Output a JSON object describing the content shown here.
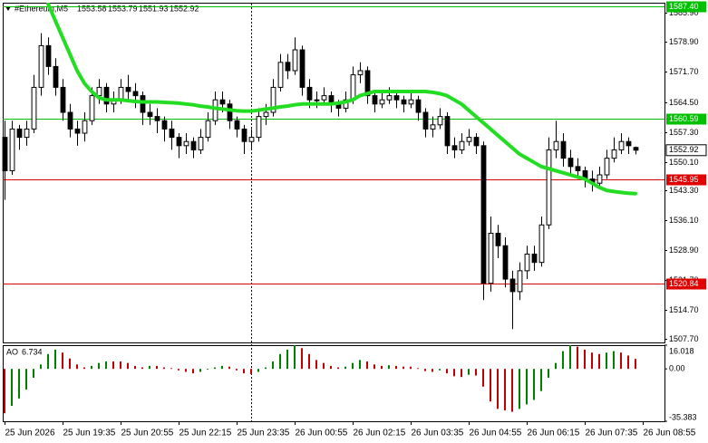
{
  "chart_data": {
    "type": "candlestick",
    "title": "#Ethereum,M5",
    "xlim": [
      -0.25,
      91
    ],
    "xticks": [
      {
        "value": 0,
        "label": "25 Jun 2026"
      },
      {
        "value": 8,
        "label": "25 Jun 19:35"
      },
      {
        "value": 16,
        "label": "25 Jun 20:55"
      },
      {
        "value": 24,
        "label": "25 Jun 22:15"
      },
      {
        "value": 32,
        "label": "25 Jun 23:35"
      },
      {
        "value": 40,
        "label": "26 Jun 00:55"
      },
      {
        "value": 48,
        "label": "26 Jun 02:15"
      },
      {
        "value": 56,
        "label": "26 Jun 03:35"
      },
      {
        "value": 64,
        "label": "26 Jun 04:55"
      },
      {
        "value": 72,
        "label": "26 Jun 06:15"
      },
      {
        "value": 80,
        "label": "26 Jun 07:35"
      },
      {
        "value": 88,
        "label": "26 Jun 08:55"
      }
    ],
    "ylim": [
      1506.8,
      1588.3
    ],
    "yticks": [
      {
        "value": 1585.9,
        "label": "1585.90"
      },
      {
        "value": 1578.9,
        "label": "1578.90"
      },
      {
        "value": 1571.7,
        "label": "1571.70"
      },
      {
        "value": 1564.5,
        "label": "1564.50"
      },
      {
        "value": 1557.3,
        "label": "1557.30"
      },
      {
        "value": 1550.1,
        "label": "1550.10"
      },
      {
        "value": 1543.3,
        "label": "1543.30"
      },
      {
        "value": 1536.1,
        "label": "1536.10"
      },
      {
        "value": 1528.9,
        "label": "1528.90"
      },
      {
        "value": 1521.7,
        "label": "1521.70"
      },
      {
        "value": 1514.7,
        "label": "1514.70"
      },
      {
        "value": 1507.7,
        "label": "1507.70"
      }
    ],
    "levels": [
      {
        "value": 1587.4,
        "label": "1587.40",
        "color": "#00c000"
      },
      {
        "value": 1560.59,
        "label": "1560.59",
        "color": "#00c000"
      },
      {
        "value": 1545.95,
        "label": "1545.95",
        "color": "#e00000"
      },
      {
        "value": 1520.84,
        "label": "1520.84",
        "color": "#e00000"
      }
    ],
    "candles": [
      [
        1556,
        1560,
        1541,
        1548
      ],
      [
        1548,
        1560,
        1547,
        1558
      ],
      [
        1558,
        1559,
        1553,
        1556
      ],
      [
        1556,
        1560,
        1554,
        1558
      ],
      [
        1558,
        1571,
        1557,
        1568
      ],
      [
        1568,
        1581,
        1566,
        1578
      ],
      [
        1578,
        1580,
        1571,
        1573
      ],
      [
        1573,
        1575,
        1566,
        1568
      ],
      [
        1568,
        1570,
        1560,
        1562
      ],
      [
        1562,
        1564,
        1556,
        1558
      ],
      [
        1558,
        1560,
        1554,
        1557
      ],
      [
        1557,
        1562,
        1555,
        1560
      ],
      [
        1560,
        1568,
        1559,
        1566
      ],
      [
        1566,
        1570,
        1564,
        1568
      ],
      [
        1568,
        1569,
        1562,
        1564
      ],
      [
        1564,
        1567,
        1562,
        1565
      ],
      [
        1565,
        1570,
        1564,
        1568
      ],
      [
        1568,
        1571,
        1565,
        1567
      ],
      [
        1567,
        1569,
        1563,
        1566
      ],
      [
        1566,
        1567,
        1559,
        1562
      ],
      [
        1562,
        1564,
        1559,
        1561
      ],
      [
        1561,
        1563,
        1557,
        1560
      ],
      [
        1560,
        1561,
        1555,
        1558
      ],
      [
        1558,
        1560,
        1553,
        1556
      ],
      [
        1556,
        1557,
        1551,
        1554
      ],
      [
        1554,
        1557,
        1552,
        1555
      ],
      [
        1555,
        1556,
        1551,
        1553
      ],
      [
        1553,
        1558,
        1552,
        1556
      ],
      [
        1556,
        1562,
        1555,
        1560
      ],
      [
        1560,
        1567,
        1559,
        1565
      ],
      [
        1565,
        1567,
        1562,
        1564
      ],
      [
        1564,
        1565,
        1558,
        1560
      ],
      [
        1560,
        1561,
        1556,
        1558
      ],
      [
        1558,
        1559,
        1552,
        1555
      ],
      [
        1555,
        1558,
        1553,
        1556
      ],
      [
        1556,
        1563,
        1555,
        1561
      ],
      [
        1561,
        1564,
        1559,
        1562
      ],
      [
        1562,
        1570,
        1561,
        1568
      ],
      [
        1568,
        1576,
        1567,
        1574
      ],
      [
        1574,
        1576,
        1570,
        1572
      ],
      [
        1572,
        1580,
        1571,
        1577
      ],
      [
        1577,
        1578,
        1566,
        1568
      ],
      [
        1568,
        1570,
        1563,
        1565
      ],
      [
        1565,
        1567,
        1563,
        1565
      ],
      [
        1565,
        1568,
        1564,
        1566
      ],
      [
        1566,
        1567,
        1562,
        1564
      ],
      [
        1564,
        1565,
        1561,
        1563
      ],
      [
        1563,
        1567,
        1562,
        1565
      ],
      [
        1565,
        1573,
        1564,
        1571
      ],
      [
        1571,
        1574,
        1569,
        1572
      ],
      [
        1572,
        1573,
        1564,
        1566
      ],
      [
        1566,
        1567,
        1562,
        1564
      ],
      [
        1564,
        1567,
        1563,
        1565
      ],
      [
        1565,
        1568,
        1564,
        1566
      ],
      [
        1566,
        1567,
        1563,
        1565
      ],
      [
        1565,
        1566,
        1562,
        1564
      ],
      [
        1564,
        1567,
        1563,
        1565
      ],
      [
        1565,
        1566,
        1560,
        1562
      ],
      [
        1562,
        1563,
        1556,
        1558
      ],
      [
        1558,
        1561,
        1556,
        1559
      ],
      [
        1559,
        1563,
        1558,
        1561
      ],
      [
        1561,
        1562,
        1552,
        1554
      ],
      [
        1554,
        1556,
        1551,
        1553
      ],
      [
        1553,
        1557,
        1552,
        1555
      ],
      [
        1555,
        1558,
        1554,
        1556
      ],
      [
        1556,
        1557,
        1552,
        1554
      ],
      [
        1554,
        1555,
        1517,
        1521
      ],
      [
        1521,
        1537,
        1519,
        1533
      ],
      [
        1533,
        1535,
        1527,
        1530
      ],
      [
        1530,
        1532,
        1520,
        1522
      ],
      [
        1522,
        1524,
        1510,
        1519
      ],
      [
        1519,
        1526,
        1517,
        1524
      ],
      [
        1524,
        1530,
        1522,
        1528
      ],
      [
        1528,
        1530,
        1524,
        1526
      ],
      [
        1526,
        1537,
        1525,
        1535
      ],
      [
        1535,
        1556,
        1534,
        1553
      ],
      [
        1553,
        1560,
        1551,
        1555
      ],
      [
        1555,
        1557,
        1549,
        1551
      ],
      [
        1551,
        1553,
        1547,
        1549
      ],
      [
        1549,
        1551,
        1546,
        1548
      ],
      [
        1548,
        1549,
        1544,
        1546
      ],
      [
        1546,
        1548,
        1543,
        1545
      ],
      [
        1545,
        1549,
        1544,
        1547
      ],
      [
        1547,
        1553,
        1546,
        1551
      ],
      [
        1551,
        1556,
        1550,
        1553
      ],
      [
        1553,
        1557,
        1552,
        1555
      ],
      [
        1555,
        1556,
        1552,
        1554
      ],
      [
        1553.58,
        1553.79,
        1551.93,
        1552.92
      ]
    ],
    "ma": {
      "color": "#22dd22",
      "values": [
        null,
        null,
        null,
        null,
        null,
        null,
        1588,
        1584,
        1580,
        1576,
        1572,
        1569,
        1567,
        1565.5,
        1565,
        1565,
        1565,
        1564.8,
        1564.6,
        1564.5,
        1564.5,
        1564.5,
        1564.4,
        1564.3,
        1564.2,
        1564,
        1563.8,
        1563.5,
        1563.3,
        1563,
        1562.8,
        1562.6,
        1562.4,
        1562.3,
        1562.3,
        1562.5,
        1562.8,
        1563,
        1563.3,
        1563.5,
        1563.8,
        1564,
        1564,
        1564,
        1564,
        1564,
        1564.2,
        1564.5,
        1565,
        1566,
        1566.5,
        1567,
        1567,
        1567,
        1567,
        1567,
        1567,
        1567,
        1567,
        1566.8,
        1566.5,
        1566,
        1565,
        1564,
        1562.5,
        1561,
        1559.5,
        1558,
        1556.5,
        1555,
        1553.5,
        1552,
        1551,
        1550,
        1549,
        1548.5,
        1548,
        1547.5,
        1547,
        1546.5,
        1546,
        1545,
        1544,
        1543.3,
        1543,
        1542.8,
        1542.6,
        1542.5
      ]
    },
    "ao": {
      "name": "AO",
      "up_color": "#008000",
      "down_color": "#c00000",
      "ylim": [
        -35.383,
        16.018
      ],
      "yticks": [
        16.018,
        {
          "value": 0,
          "label": "0.00"
        },
        -35.383
      ],
      "values": [
        -30,
        -25,
        -20,
        -14,
        -6,
        3,
        10,
        13,
        11,
        7,
        3,
        1,
        2,
        4,
        5,
        5,
        5,
        4,
        2,
        1,
        2,
        2,
        1,
        0.5,
        -1,
        -2,
        -3,
        -2,
        -0.5,
        1,
        2,
        1.5,
        -1,
        -3,
        -3.5,
        -2,
        1,
        5,
        10,
        13,
        16,
        14,
        10,
        6,
        4,
        2,
        1,
        1.5,
        4,
        6,
        5,
        3,
        2,
        2.5,
        2,
        1.5,
        1.5,
        0.5,
        -1.5,
        -2,
        -1,
        -3,
        -5,
        -5.5,
        -4,
        -4.5,
        -12,
        -22,
        -27,
        -28,
        -29,
        -27,
        -24,
        -21,
        -15,
        -6,
        4,
        12,
        16,
        15,
        13,
        11,
        10,
        11,
        12,
        11,
        9,
        6.734
      ]
    }
  }
}
